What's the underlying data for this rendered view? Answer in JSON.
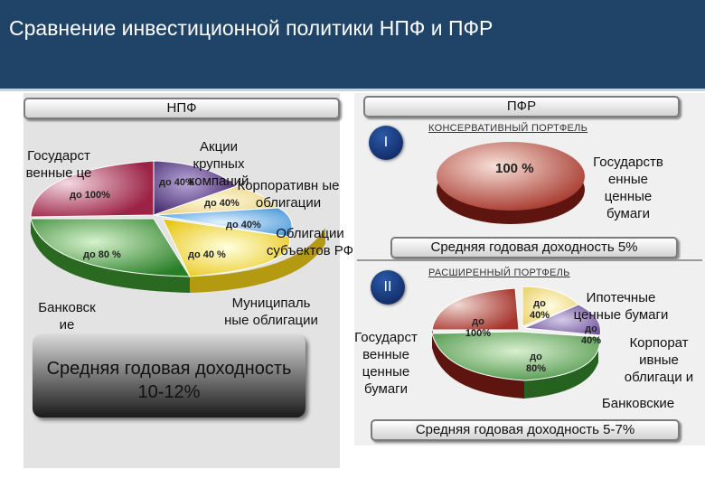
{
  "title": "Сравнение инвестиционной политики НПФ и ПФР",
  "npf": {
    "header": "НПФ",
    "labels": {
      "gov": "Государст венные це",
      "stocks": "Акции крупных компаний",
      "corp": "Корпоративн ые облигации",
      "subj": "Облигации субъектов РФ",
      "bank": "Банковск ие депозиты",
      "muni": "Муниципаль ные облигации"
    },
    "slices": {
      "gov": "до 100%",
      "stocks": "до 40%",
      "corp": "до 40%",
      "subj": "до 40%",
      "muni": "до 40 %",
      "bank": "до 80 %"
    },
    "yield": "Средняя годовая доходность 10-12%"
  },
  "pfr": {
    "header": "ПФР",
    "conservative": {
      "numeral": "I",
      "title": "КОНСЕРВАТИВНЫЙ ПОРТФЕЛЬ",
      "slice": "100 %",
      "label": "Государств енные ценные бумаги",
      "yield": "Средняя годовая доходность 5%"
    },
    "extended": {
      "numeral": "II",
      "title": "РАСШИРЕННЫЙ ПОРТФЕЛЬ",
      "slices": {
        "gov": "до 100%",
        "mortgage": "до 40%",
        "corp": "до 40%",
        "bank": "до 80%"
      },
      "labels": {
        "gov": "Государст венные ценные бумаги",
        "mortgage": "Ипотечные ценные бумаги",
        "corp": "Корпорат ивные облигаци и",
        "bank": "Банковские"
      },
      "yield": "Средняя годовая доходность 5-7%"
    }
  },
  "colors": {
    "title_bar": "#1f4468",
    "gov": "#b03a5a",
    "stocks": "#5a3a86",
    "corp": "#f2e6a0",
    "subj": "#5aa9e6",
    "muni": "#f3e23a",
    "bank": "#3c9a3a",
    "pfr_gov": "#a9372b",
    "pfr_mortgage": "#f2e08a"
  }
}
